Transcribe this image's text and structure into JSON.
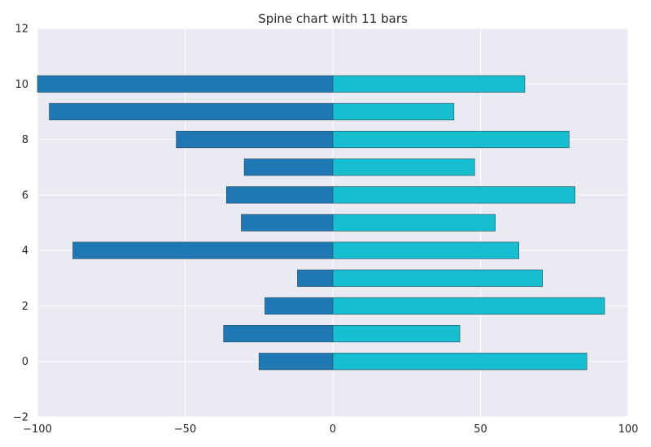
{
  "chart_data": {
    "type": "bar",
    "orientation": "horizontal",
    "title": "Spine chart with 11 bars",
    "xlabel": "",
    "ylabel": "",
    "xlim": [
      -100,
      100
    ],
    "ylim": [
      -2,
      12
    ],
    "xticks": [
      -100,
      -50,
      0,
      50,
      100
    ],
    "xtick_labels": [
      "−100",
      "−50",
      "0",
      "50",
      "100"
    ],
    "yticks": [
      -2,
      0,
      2,
      4,
      6,
      8,
      10,
      12
    ],
    "ytick_labels": [
      "−2",
      "0",
      "2",
      "4",
      "6",
      "8",
      "10",
      "12"
    ],
    "grid": true,
    "categories": [
      0,
      1,
      2,
      3,
      4,
      5,
      6,
      7,
      8,
      9,
      10
    ],
    "series": [
      {
        "color": "#1f77b4",
        "values": [
          -25,
          -37,
          -23,
          -12,
          -88,
          -31,
          -36,
          -30,
          -53,
          -96,
          -100
        ]
      },
      {
        "color": "#17becf",
        "values": [
          86,
          43,
          92,
          71,
          63,
          55,
          82,
          48,
          80,
          41,
          65
        ]
      }
    ],
    "background": "#eaeaf2"
  }
}
